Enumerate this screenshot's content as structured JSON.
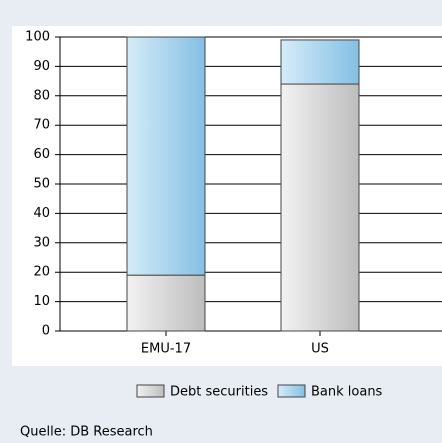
{
  "chart_data": {
    "type": "stacked_bar",
    "categories": [
      "EMU-17",
      "US"
    ],
    "series": [
      {
        "name": "Debt securities",
        "color": "#d4d4d4",
        "values": [
          19,
          84
        ]
      },
      {
        "name": "Bank loans",
        "color": "#a8d3ee",
        "values": [
          81,
          15
        ]
      }
    ],
    "ylim": [
      0,
      100
    ],
    "yticks": [
      0,
      10,
      20,
      30,
      40,
      50,
      60,
      70,
      80,
      90,
      100
    ],
    "grid": true,
    "legend": "bottom",
    "source": "Quelle: DB Research"
  }
}
